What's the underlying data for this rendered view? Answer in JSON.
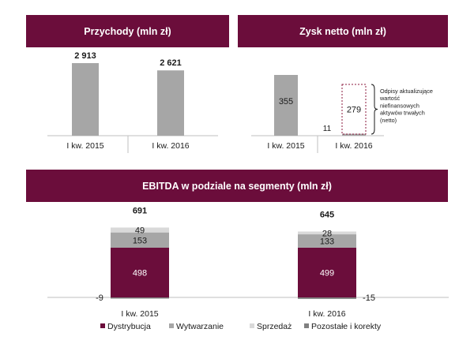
{
  "chart_data": [
    {
      "type": "bar",
      "title": "Przychody (mln zł)",
      "categories": [
        "I kw. 2015",
        "I kw. 2016"
      ],
      "values": [
        2913,
        2621
      ],
      "value_labels": [
        "2 913",
        "2 621"
      ],
      "ylim": [
        0,
        3200
      ],
      "grid": false,
      "color": "#a6a6a6"
    },
    {
      "type": "bar",
      "title": "Zysk netto (mln zł)",
      "categories": [
        "I kw. 2015",
        "I kw. 2016"
      ],
      "values": [
        355,
        11
      ],
      "value_labels": [
        "355",
        "11"
      ],
      "ylim": [
        0,
        380
      ],
      "grid": false,
      "color": "#a6a6a6",
      "annotation": {
        "category": "I kw. 2016",
        "value": 279,
        "label": "279",
        "text": [
          "Odpisy aktualizujące",
          "wartość",
          "niefinansowych",
          "aktywów trwałych",
          "(netto)"
        ],
        "border_color": "#8b1a3c"
      }
    },
    {
      "type": "bar",
      "stacked": true,
      "title": "EBITDA w podziale na segmenty (mln zł)",
      "categories": [
        "I kw. 2015",
        "I kw. 2016"
      ],
      "totals": [
        691,
        645
      ],
      "series": [
        {
          "name": "Dystrybucja",
          "color": "#6b0d3b",
          "values": [
            498,
            499
          ]
        },
        {
          "name": "Wytwarzanie",
          "color": "#a6a6a6",
          "values": [
            153,
            133
          ]
        },
        {
          "name": "Sprzedaż",
          "color": "#d9d9d9",
          "values": [
            49,
            28
          ]
        },
        {
          "name": "Pozostałe i korekty",
          "color": "#808080",
          "values": [
            -9,
            -15
          ]
        }
      ],
      "legend": "bottom",
      "grid": false
    }
  ]
}
